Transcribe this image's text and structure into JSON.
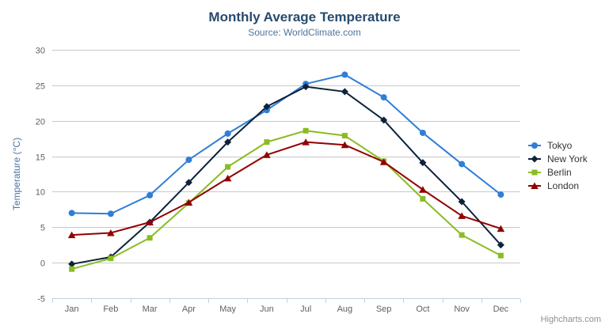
{
  "chart_data": {
    "type": "line",
    "title": "Monthly Average Temperature",
    "subtitle": "Source: WorldClimate.com",
    "categories": [
      "Jan",
      "Feb",
      "Mar",
      "Apr",
      "May",
      "Jun",
      "Jul",
      "Aug",
      "Sep",
      "Oct",
      "Nov",
      "Dec"
    ],
    "xlabel": "",
    "ylabel": "Temperature (°C)",
    "ylim": [
      -5,
      30
    ],
    "y_tick_interval": 5,
    "y_tick_labels": [
      "-5",
      "0",
      "5",
      "10",
      "15",
      "20",
      "25",
      "30"
    ],
    "grid": true,
    "legend_position": "right",
    "series": [
      {
        "name": "Tokyo",
        "color": "#2f7ed8",
        "marker": "circle",
        "values": [
          7.0,
          6.9,
          9.5,
          14.5,
          18.2,
          21.5,
          25.2,
          26.5,
          23.3,
          18.3,
          13.9,
          9.6
        ]
      },
      {
        "name": "New York",
        "color": "#0d233a",
        "marker": "diamond",
        "values": [
          -0.2,
          0.8,
          5.7,
          11.3,
          17.0,
          22.0,
          24.8,
          24.1,
          20.1,
          14.1,
          8.6,
          2.5
        ]
      },
      {
        "name": "Berlin",
        "color": "#8bbc21",
        "marker": "square",
        "values": [
          -0.9,
          0.6,
          3.5,
          8.4,
          13.5,
          17.0,
          18.6,
          17.9,
          14.3,
          9.0,
          3.9,
          1.0
        ]
      },
      {
        "name": "London",
        "color": "#910000",
        "marker": "triangle",
        "values": [
          3.9,
          4.2,
          5.7,
          8.5,
          11.9,
          15.2,
          17.0,
          16.6,
          14.2,
          10.3,
          6.6,
          4.8
        ]
      }
    ],
    "credits": "Highcharts.com",
    "theme": {
      "title_color": "#274b6d",
      "subtitle_color": "#4d759e",
      "axis_title_color": "#4d759e",
      "axis_label_color": "#606060",
      "grid_color": "#c8c8c8",
      "axis_line_color": "#c0d0e0",
      "legend_text_color": "#333333",
      "credits_color": "#909090",
      "background": "#ffffff"
    }
  },
  "export_menu": {
    "icon": "hamburger-icon"
  }
}
